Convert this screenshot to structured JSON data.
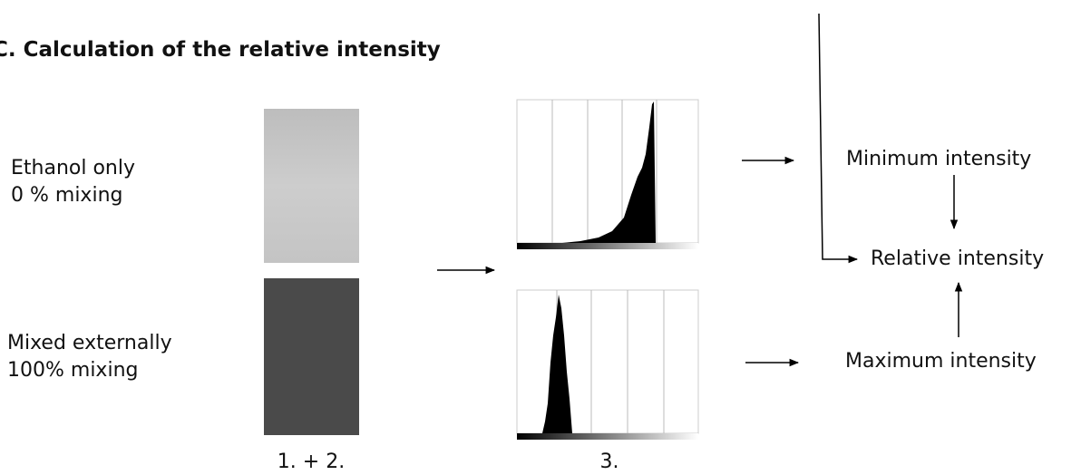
{
  "title": "C. Calculation of the relative intensity",
  "samples": [
    {
      "label": "Ethanol only",
      "sublabel": "0 % mixing"
    },
    {
      "label": "Mixed externally",
      "sublabel": "100% mixing"
    }
  ],
  "steps": {
    "images": "1. + 2.",
    "histograms": "3."
  },
  "results": {
    "minimum": "Minimum intensity",
    "relative": "Relative intensity",
    "maximum": "Maximum intensity"
  }
}
